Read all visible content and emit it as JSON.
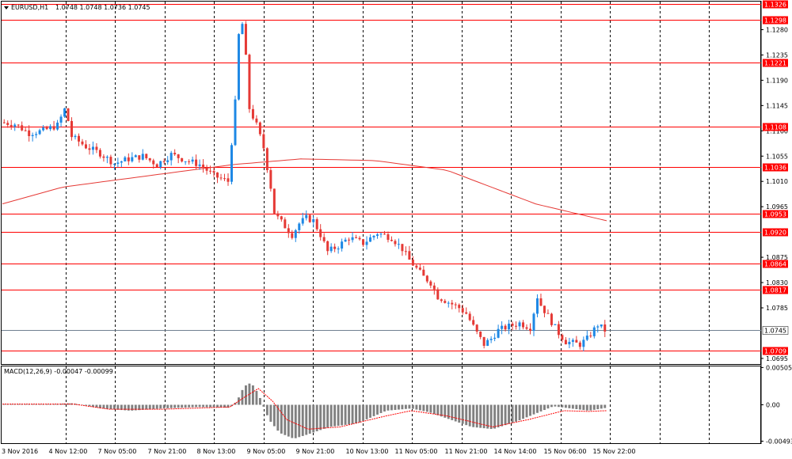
{
  "chart_header": {
    "symbol": "EURUSD,H1",
    "ohlc": "1.0748 1.0748 1.0736 1.0745"
  },
  "macd_header": {
    "label": "MACD(12,26,9) -0.00047 -0.00099"
  },
  "colors": {
    "bull": "#1e88e5",
    "bear": "#e53935",
    "level": "#ff0000",
    "ma": "#e53935",
    "grid": "#000000",
    "current": "#708090",
    "macd_hist": "#808080",
    "macd_signal": "#ff0000"
  },
  "chart_data": {
    "type": "candlestick",
    "price_axis": {
      "range": [
        1.0685,
        1.133
      ],
      "ticks": [
        "1.1280",
        "1.1235",
        "1.1190",
        "1.1145",
        "1.1100",
        "1.1055",
        "1.1010",
        "1.0965",
        "1.0875",
        "1.0830",
        "1.0785",
        "1.0695"
      ]
    },
    "levels": [
      {
        "price": 1.1326,
        "label": "1.1326"
      },
      {
        "price": 1.1298,
        "label": "1.1298"
      },
      {
        "price": 1.1221,
        "label": "1.1221"
      },
      {
        "price": 1.1108,
        "label": "1.1108"
      },
      {
        "price": 1.1036,
        "label": "1.1036"
      },
      {
        "price": 1.0953,
        "label": "1.0953"
      },
      {
        "price": 1.092,
        "label": "1.0920"
      },
      {
        "price": 1.0864,
        "label": "1.0864"
      },
      {
        "price": 1.0817,
        "label": "1.0817"
      },
      {
        "price": 1.0709,
        "label": "1.0709"
      }
    ],
    "current_price": {
      "price": 1.0745,
      "label": "1.0745"
    },
    "time_labels": [
      "3 Nov 2016",
      "4 Nov 12:00",
      "7 Nov 05:00",
      "7 Nov 21:00",
      "8 Nov 13:00",
      "9 Nov 05:00",
      "9 Nov 21:00",
      "10 Nov 13:00",
      "11 Nov 05:00",
      "11 Nov 21:00",
      "14 Nov 14:00",
      "15 Nov 06:00",
      "15 Nov 22:00"
    ],
    "close_path": [
      [
        0,
        1.1115
      ],
      [
        4,
        1.1112
      ],
      [
        8,
        1.1096
      ],
      [
        12,
        1.11
      ],
      [
        16,
        1.111
      ],
      [
        18,
        1.1138
      ],
      [
        19,
        1.1118
      ],
      [
        20,
        1.109
      ],
      [
        24,
        1.1072
      ],
      [
        28,
        1.106
      ],
      [
        32,
        1.1042
      ],
      [
        36,
        1.105
      ],
      [
        40,
        1.1055
      ],
      [
        44,
        1.104
      ],
      [
        48,
        1.1058
      ],
      [
        52,
        1.1048
      ],
      [
        56,
        1.104
      ],
      [
        60,
        1.102
      ],
      [
        64,
        1.101
      ],
      [
        66,
        1.115
      ],
      [
        67,
        1.127
      ],
      [
        68,
        1.129
      ],
      [
        69,
        1.123
      ],
      [
        70,
        1.114
      ],
      [
        72,
        1.111
      ],
      [
        74,
        1.107
      ],
      [
        76,
        1.1
      ],
      [
        77,
        1.0955
      ],
      [
        78,
        1.0945
      ],
      [
        80,
        1.093
      ],
      [
        82,
        1.0915
      ],
      [
        84,
        1.0935
      ],
      [
        86,
        1.0945
      ],
      [
        88,
        1.094
      ],
      [
        90,
        1.0915
      ],
      [
        92,
        1.0885
      ],
      [
        95,
        1.0895
      ],
      [
        98,
        1.091
      ],
      [
        102,
        1.09
      ],
      [
        106,
        1.0918
      ],
      [
        110,
        1.091
      ],
      [
        113,
        1.089
      ],
      [
        115,
        1.087
      ],
      [
        117,
        1.0855
      ],
      [
        119,
        1.084
      ],
      [
        121,
        1.083
      ],
      [
        123,
        1.0805
      ],
      [
        126,
        1.0795
      ],
      [
        129,
        1.0785
      ],
      [
        131,
        1.0775
      ],
      [
        134,
        1.074
      ],
      [
        136,
        1.072
      ],
      [
        138,
        1.073
      ],
      [
        140,
        1.0745
      ],
      [
        142,
        1.075
      ],
      [
        146,
        1.0758
      ],
      [
        149,
        1.075
      ],
      [
        151,
        1.0805
      ],
      [
        152,
        1.079
      ],
      [
        155,
        1.076
      ],
      [
        157,
        1.074
      ],
      [
        159,
        1.0725
      ],
      [
        163,
        1.072
      ],
      [
        165,
        1.073
      ],
      [
        168,
        1.0755
      ],
      [
        170,
        1.0745
      ]
    ],
    "ma_path": [
      [
        0,
        1.097
      ],
      [
        17,
        1.1
      ],
      [
        65,
        1.104
      ],
      [
        84,
        1.105
      ],
      [
        105,
        1.1047
      ],
      [
        125,
        1.103
      ],
      [
        150,
        1.097
      ],
      [
        170,
        1.094
      ]
    ],
    "macd": {
      "range": [
        -0.0052,
        0.0052
      ],
      "ticks": [
        "0.00505",
        "0.00",
        "-0.00493"
      ],
      "histogram_path": [
        [
          0,
          0.0001
        ],
        [
          15,
          0.0001
        ],
        [
          18,
          0.0002
        ],
        [
          20,
          0.0002
        ],
        [
          28,
          -0.0005
        ],
        [
          36,
          -0.0008
        ],
        [
          45,
          -0.0005
        ],
        [
          55,
          -0.0003
        ],
        [
          64,
          -0.0004
        ],
        [
          66,
          0.0005
        ],
        [
          68,
          0.0025
        ],
        [
          70,
          0.003
        ],
        [
          72,
          0.0015
        ],
        [
          75,
          -0.002
        ],
        [
          78,
          -0.0038
        ],
        [
          82,
          -0.0046
        ],
        [
          86,
          -0.004
        ],
        [
          92,
          -0.003
        ],
        [
          100,
          -0.0025
        ],
        [
          108,
          -0.0008
        ],
        [
          115,
          -0.0005
        ],
        [
          120,
          -0.001
        ],
        [
          126,
          -0.002
        ],
        [
          132,
          -0.003
        ],
        [
          138,
          -0.0033
        ],
        [
          145,
          -0.0022
        ],
        [
          150,
          -0.0012
        ],
        [
          155,
          -0.0002
        ],
        [
          160,
          -0.0005
        ],
        [
          165,
          -0.0008
        ],
        [
          170,
          -0.0004
        ]
      ],
      "signal_path": [
        [
          0,
          0.0001
        ],
        [
          20,
          0.0001
        ],
        [
          30,
          -0.0006
        ],
        [
          45,
          -0.0006
        ],
        [
          64,
          -0.0003
        ],
        [
          68,
          0.001
        ],
        [
          72,
          0.0022
        ],
        [
          76,
          0.0005
        ],
        [
          80,
          -0.002
        ],
        [
          86,
          -0.0033
        ],
        [
          95,
          -0.003
        ],
        [
          108,
          -0.0015
        ],
        [
          115,
          -0.0008
        ],
        [
          125,
          -0.0015
        ],
        [
          138,
          -0.003
        ],
        [
          148,
          -0.002
        ],
        [
          158,
          -0.0008
        ],
        [
          165,
          -0.0009
        ],
        [
          170,
          -0.0008
        ]
      ]
    }
  }
}
